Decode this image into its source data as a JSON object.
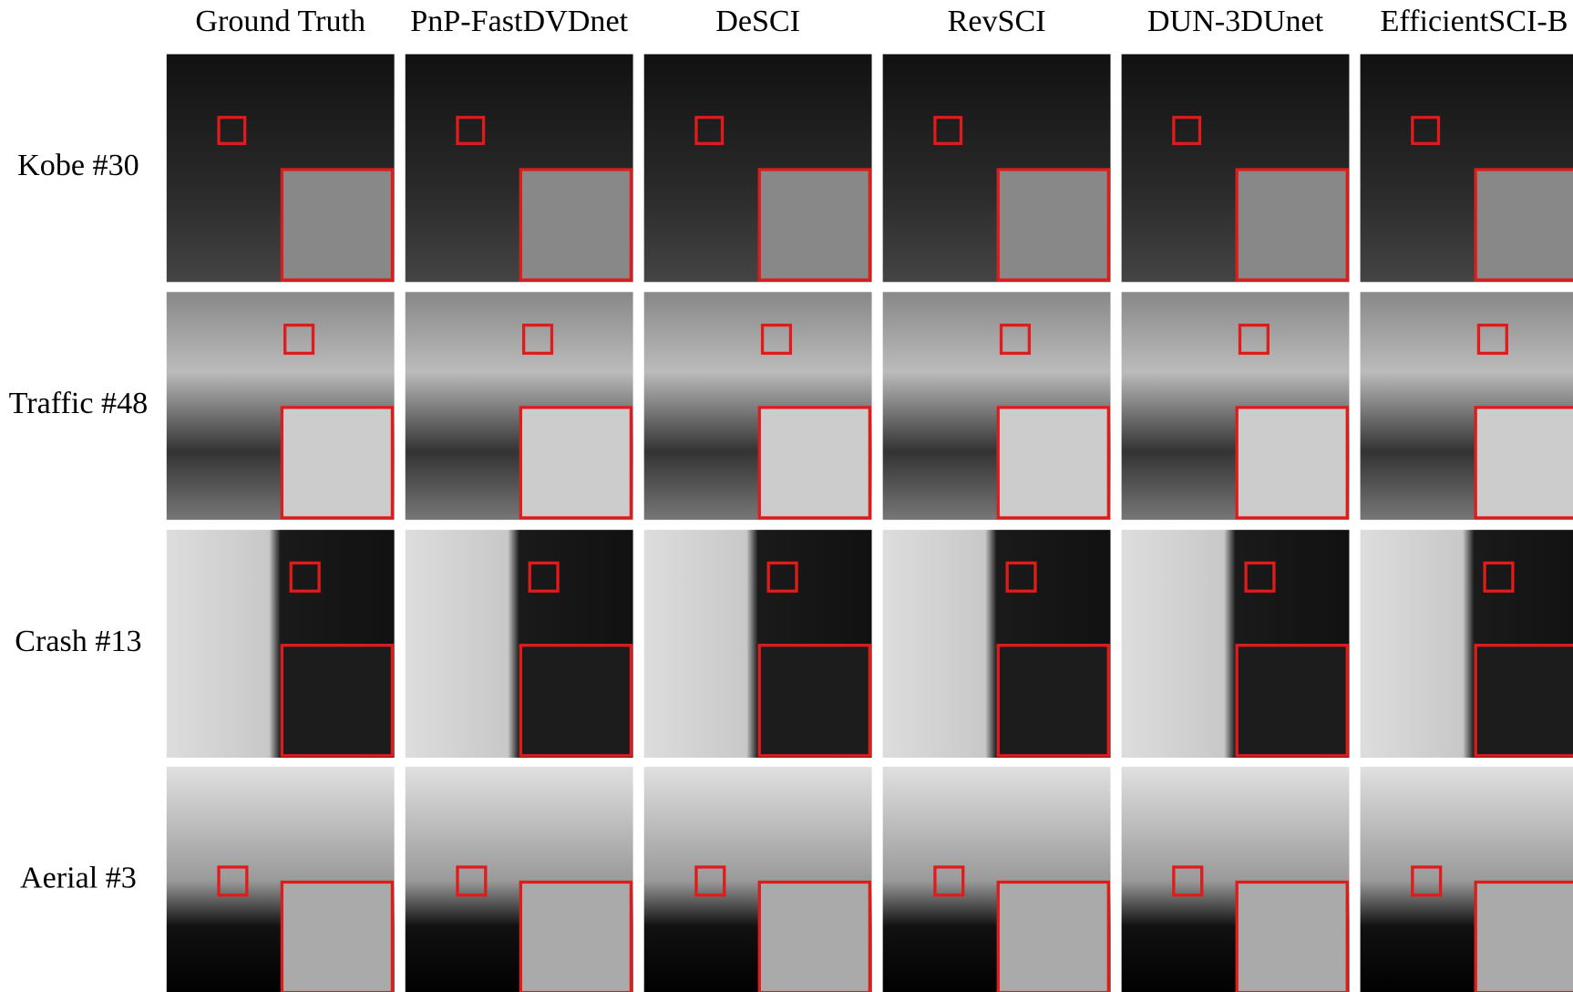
{
  "columns": [
    "Ground Truth",
    "PnP-FastDVDnet",
    "DeSCI",
    "RevSCI",
    "DUN-3DUnet",
    "EfficientSCI-B"
  ],
  "rows": [
    "Kobe #30",
    "Traffic #48",
    "Crash #13",
    "Aerial #3"
  ]
}
